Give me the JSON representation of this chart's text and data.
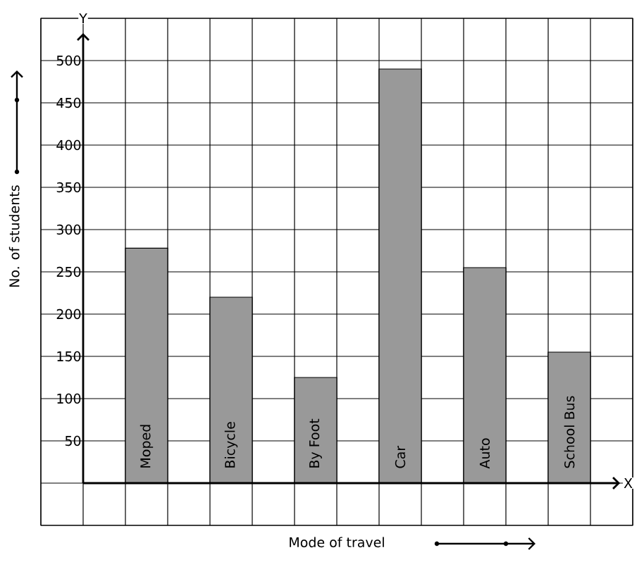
{
  "chart_data": {
    "type": "bar",
    "xlabel": "Mode of travel",
    "ylabel": "No. of students",
    "categories": [
      "Moped",
      "Bicycle",
      "By Foot",
      "Car",
      "Auto",
      "School Bus"
    ],
    "values": [
      278,
      220,
      125,
      490,
      255,
      155
    ],
    "color": "#999999",
    "ylim": [
      -50,
      550
    ],
    "yticks": [
      50,
      100,
      150,
      200,
      250,
      300,
      350,
      400,
      450,
      500
    ],
    "grid": true,
    "annotations": [
      "Y",
      "X"
    ]
  }
}
